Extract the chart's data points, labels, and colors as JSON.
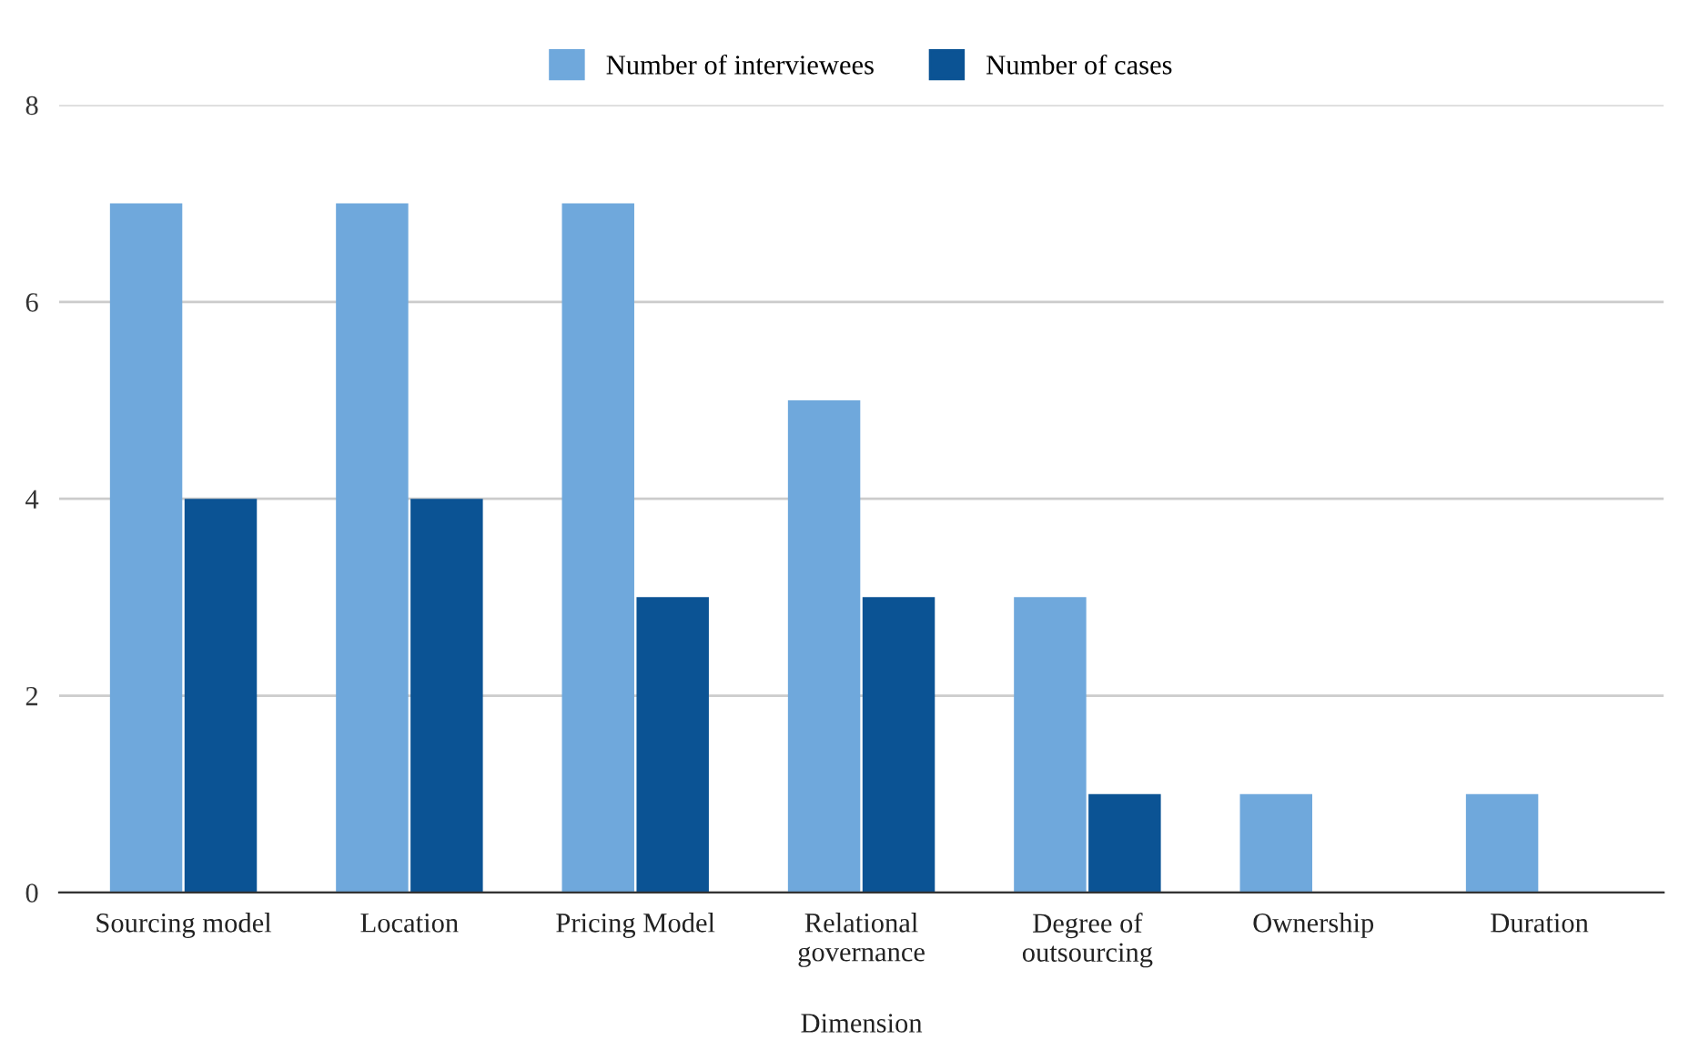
{
  "chart_data": {
    "type": "bar",
    "xlabel": "Dimension",
    "categories": [
      "Sourcing model",
      "Location",
      "Pricing Model",
      "Relational\ngovernance",
      "Degree of\noutsourcing",
      "Ownership",
      "Duration"
    ],
    "series": [
      {
        "name": "Number of interviewees",
        "color": "#6fa8dc",
        "values": [
          7,
          7,
          7,
          5,
          3,
          1,
          1
        ]
      },
      {
        "name": "Number of cases",
        "color": "#0b5394",
        "values": [
          4,
          4,
          3,
          3,
          1,
          0,
          0
        ]
      }
    ],
    "ylim": [
      0,
      8
    ],
    "yticks": [
      0,
      2,
      4,
      6,
      8
    ],
    "grid": "y",
    "legend": "top"
  }
}
